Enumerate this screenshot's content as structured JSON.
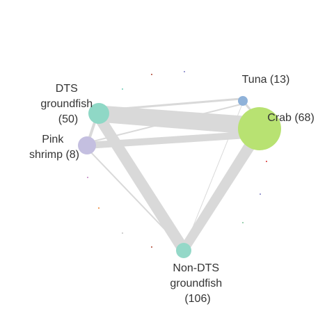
{
  "nodes": [
    {
      "id": "dts",
      "label_lines": [
        "DTS",
        "groundfish",
        "(50)"
      ],
      "color": "#8fd8c6"
    },
    {
      "id": "pink",
      "label_lines": [
        "Pink",
        "shrimp (8)"
      ],
      "color": "#c4bfe0"
    },
    {
      "id": "tuna",
      "label_lines": [
        "Tuna (13)"
      ],
      "color": "#8fb2d9"
    },
    {
      "id": "crab",
      "label_lines": [
        "Crab (68)"
      ],
      "color": "#b8e272"
    },
    {
      "id": "nondts",
      "label_lines": [
        "Non-DTS",
        "groundfish",
        "(106)"
      ],
      "color": "#94d8c8"
    }
  ],
  "edge_color": "#d9d9d9"
}
